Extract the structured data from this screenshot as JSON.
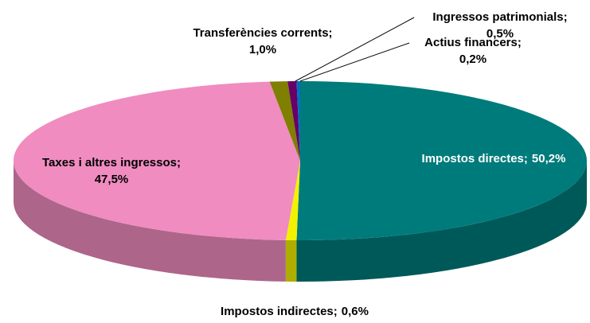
{
  "chart_data": {
    "type": "pie",
    "categories": [
      "Impostos directes;",
      "Impostos indirectes;",
      "Taxes i altres ingressos;",
      "Transferències corrents;",
      "Ingressos patrimonials;",
      "Actius financers;"
    ],
    "values": [
      50.2,
      0.6,
      47.5,
      1.0,
      0.5,
      0.2
    ],
    "value_labels": [
      "50,2%",
      "0,6%",
      "47,5%",
      "1,0%",
      "0,5%",
      "0,2%"
    ],
    "colors": [
      "#007b7b",
      "#f2f200",
      "#f08cc0",
      "#7f7f00",
      "#660066",
      "#0070c0"
    ]
  }
}
